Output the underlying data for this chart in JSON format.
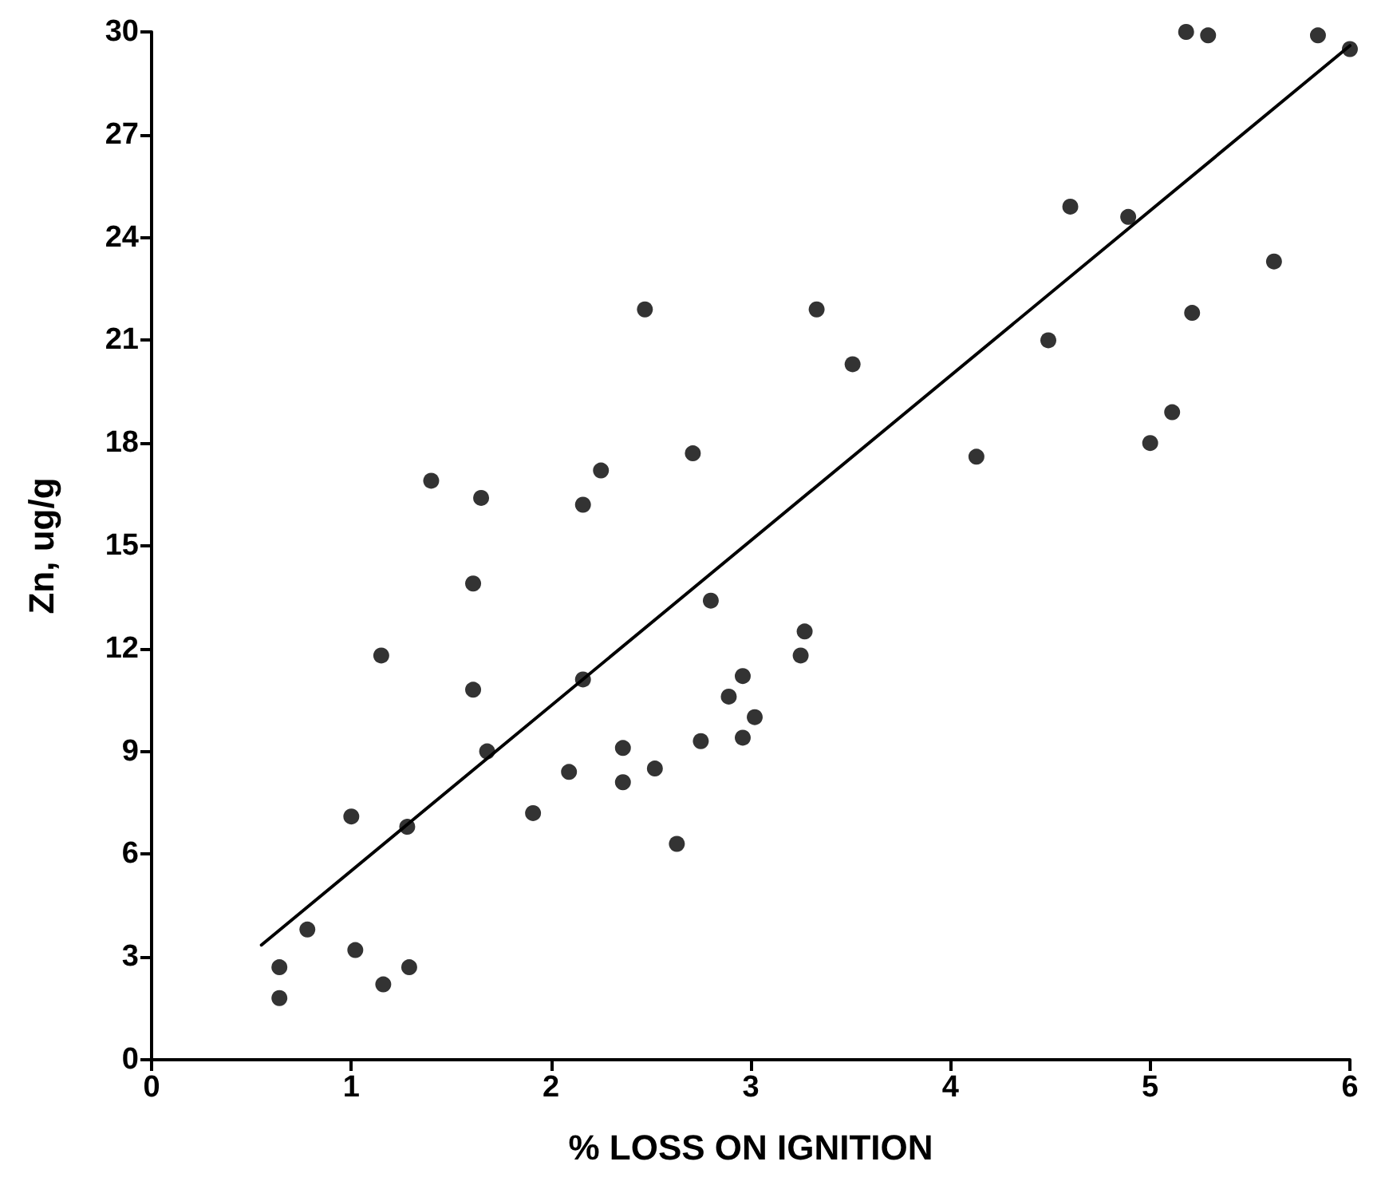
{
  "chart_data": {
    "type": "scatter",
    "xlabel": "% LOSS ON IGNITION",
    "ylabel": "Zn, ug/g",
    "xlim": [
      0,
      6
    ],
    "xticks": [
      0,
      1,
      2,
      3,
      4,
      5,
      6
    ],
    "ylim": [
      0,
      30
    ],
    "yticks": [
      0,
      3,
      6,
      9,
      12,
      15,
      18,
      21,
      24,
      27,
      30
    ],
    "grid": false,
    "marker": "circle",
    "series": [
      {
        "color": "#000000",
        "x": [
          0.64,
          0.64,
          0.78,
          1.0,
          1.02,
          1.15,
          1.16,
          1.28,
          1.29,
          1.4,
          1.61,
          1.61,
          1.65,
          1.68,
          1.91,
          2.09,
          2.16,
          2.16,
          2.25,
          2.36,
          2.36,
          2.47,
          2.52,
          2.63,
          2.71,
          2.75,
          2.8,
          2.89,
          2.96,
          2.96,
          3.02,
          3.25,
          3.27,
          3.33,
          3.51,
          4.13,
          4.49,
          4.6,
          4.89,
          5.0,
          5.11,
          5.21,
          5.18,
          5.29,
          5.62,
          5.84,
          6.0
        ],
        "values": [
          2.7,
          1.8,
          3.8,
          7.1,
          3.2,
          11.8,
          2.2,
          6.8,
          2.7,
          16.9,
          13.9,
          10.8,
          16.4,
          9.0,
          7.2,
          8.4,
          16.2,
          11.1,
          17.2,
          8.1,
          9.1,
          21.9,
          8.5,
          6.3,
          17.7,
          9.3,
          13.4,
          10.6,
          11.2,
          9.4,
          10.0,
          11.8,
          12.5,
          21.9,
          20.3,
          17.6,
          21.0,
          24.9,
          24.6,
          18.0,
          18.9,
          21.8,
          30.0,
          29.9,
          23.3,
          29.9,
          29.5
        ]
      },
      {
        "type": "line",
        "color": "#000000",
        "marker": "none",
        "line_style": "solid",
        "x": [
          0.55,
          6
        ],
        "values": [
          3.35,
          29.6
        ]
      }
    ]
  }
}
